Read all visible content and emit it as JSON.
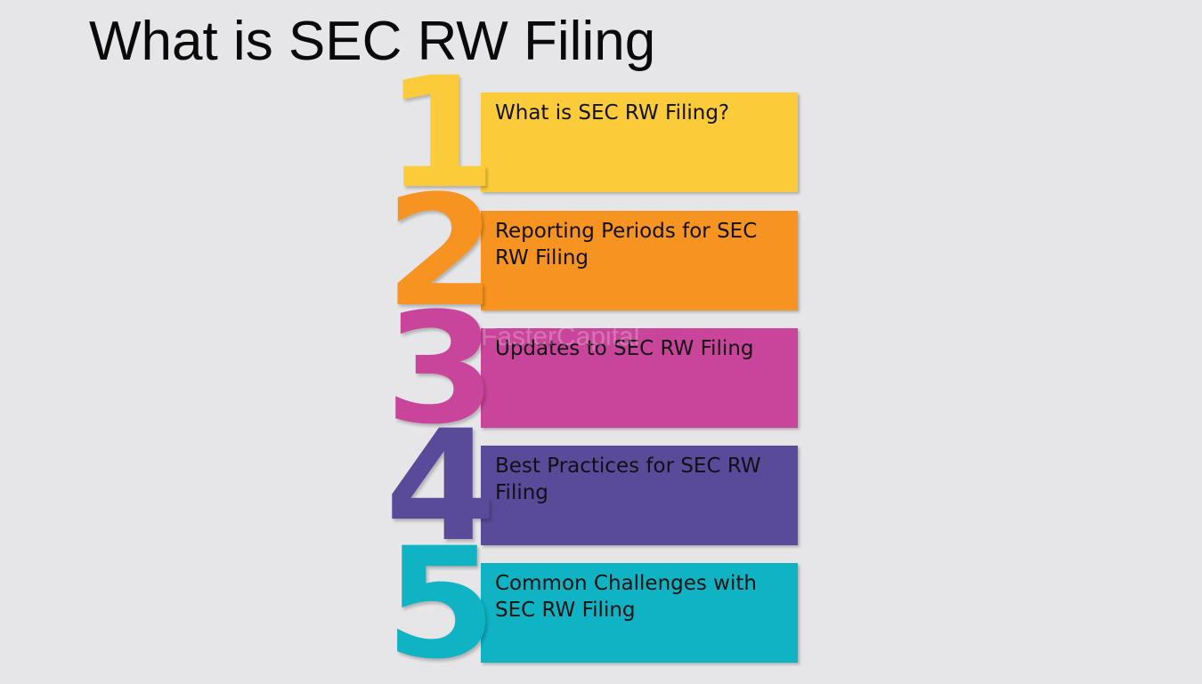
{
  "title": "What is SEC RW Filing",
  "steps": [
    {
      "number": "1",
      "label": "What is SEC RW Filing?",
      "color": "#fccb3a"
    },
    {
      "number": "2",
      "label": "Reporting Periods for SEC RW Filing",
      "color": "#f79321"
    },
    {
      "number": "3",
      "label": "Updates to SEC RW Filing",
      "color": "#c9449b"
    },
    {
      "number": "4",
      "label": "Best Practices for SEC RW Filing",
      "color": "#5a4a9a"
    },
    {
      "number": "5",
      "label": "Common Challenges with SEC RW Filing",
      "color": "#0fb3c4"
    }
  ],
  "watermark": "FasterCapital"
}
